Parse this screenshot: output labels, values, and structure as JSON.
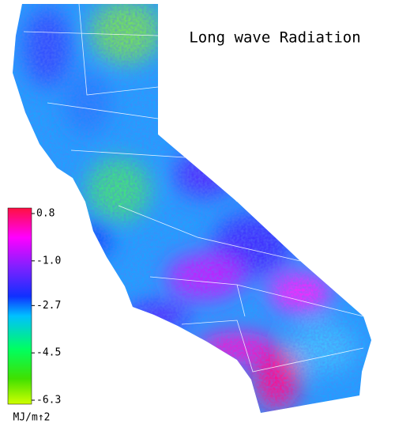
{
  "title": "Long wave Radiation",
  "colorbar": {
    "label": "MJ/m↑2",
    "lim": [
      -6.3,
      0.8
    ],
    "ticks": [
      0.8,
      {
        "value": -1.0,
        "label": "-1.0"
      },
      -2.7,
      -4.5,
      -6.3
    ]
  }
}
